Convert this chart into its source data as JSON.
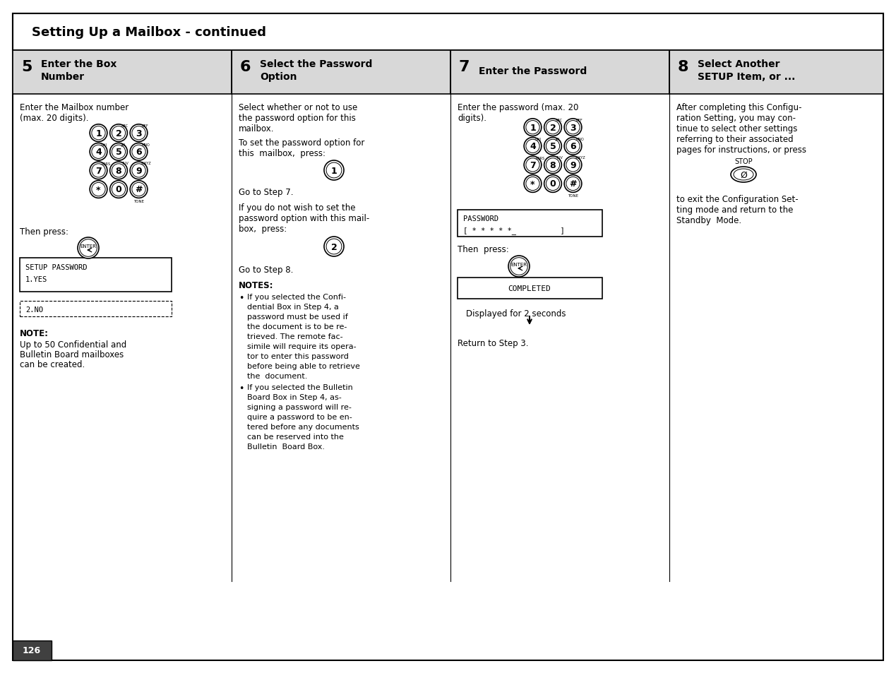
{
  "title": "Setting Up a Mailbox - continued",
  "page_number": "126",
  "bg_color": "#ffffff",
  "border_color": "#000000",
  "header_bg": "#d8d8d8",
  "step5_text1": "Enter the Mailbox number",
  "step5_text2": "(max. 20 digits).",
  "step5_then": "Then press:",
  "step5_note_title": "NOTE:",
  "step5_note1": "Up to 50 Confidential and",
  "step5_note2": "Bulletin Board mailboxes",
  "step5_note3": "can be created.",
  "step6_text1": "Select whether or not to use",
  "step6_text2": "the password option for this",
  "step6_text3": "mailbox.",
  "step6_text4": "To set the password option for",
  "step6_text5": "this  mailbox,  press:",
  "step6_goto7": "Go to Step 7.",
  "step6_text6": "If you do not wish to set the",
  "step6_text7": "password option with this mail-",
  "step6_text8": "box,  press:",
  "step6_goto8": "Go to Step 8.",
  "step6_notes_title": "NOTES:",
  "step6_bullet1": [
    "If you selected the Confi-",
    "dential Box in Step 4, a",
    "password must be used if",
    "the document is to be re-",
    "trieved. The remote fac-",
    "simile will require its opera-",
    "tor to enter this password",
    "before being able to retrieve",
    "the  document."
  ],
  "step6_bullet2": [
    "If you selected the Bulletin",
    "Board Box in Step 4, as-",
    "signing a password will re-",
    "quire a password to be en-",
    "tered before any documents",
    "can be reserved into the",
    "Bulletin  Board Box."
  ],
  "step7_text1": "Enter the password (max. 20",
  "step7_text2": "digits).",
  "step7_display1a": "PASSWORD",
  "step7_display1b": "[ * * * * *_          ]",
  "step7_then": "Then  press:",
  "step7_display2": "COMPLETED",
  "step7_seconds": "Displayed for 2 seconds",
  "step7_return": "Return to Step 3.",
  "step8_text1": "After completing this Configu-",
  "step8_text2": "ration Setting, you may con-",
  "step8_text3": "tinue to select other settings",
  "step8_text4": "referring to their associated",
  "step8_text5": "pages for instructions, or press",
  "step8_stop_label": "STOP",
  "step8_text6": "to exit the Configuration Set-",
  "step8_text7": "ting mode and return to the",
  "step8_text8": "Standby  Mode."
}
